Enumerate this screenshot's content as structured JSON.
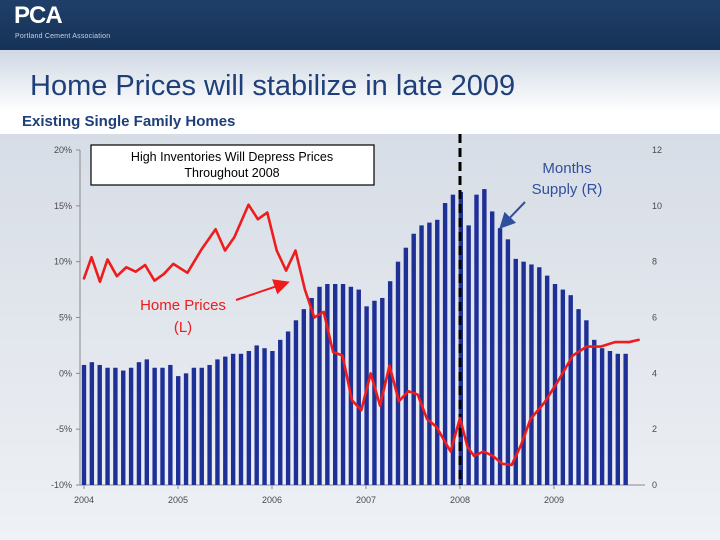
{
  "logo": {
    "text": "PCA",
    "subtitle": "Portland Cement Association"
  },
  "page": {
    "title": "Home Prices will stabilize in late 2009",
    "subtitle": "Existing Single Family Homes"
  },
  "colors": {
    "bar": "#1e2f96",
    "line": "#ee1c1c",
    "label_blue": "#30509e",
    "axis_text": "#4a4a4a",
    "chart_bg_top": "#d7dde6",
    "chart_bg_bottom": "#eef1f5"
  },
  "chart_data": {
    "type": "bar",
    "title": "High Inventories Will Depress Prices Throughout 2008",
    "title_lines": [
      "High Inventories Will Depress Prices",
      "Throughout 2008"
    ],
    "x_ticks": [
      "2004",
      "2005",
      "2006",
      "2007",
      "2008",
      "2009"
    ],
    "y_left": {
      "range": [
        -10,
        20
      ],
      "ticks": [
        "-10%",
        "-5%",
        "0%",
        "5%",
        "10%",
        "15%",
        "20%"
      ]
    },
    "y_right": {
      "range": [
        0,
        12
      ],
      "ticks": [
        "0",
        "2",
        "4",
        "6",
        "8",
        "10",
        "12"
      ]
    },
    "forecast_divider": "2008",
    "series": [
      {
        "name": "Months Supply (R)",
        "type": "bar",
        "axis": "right",
        "label_lines": [
          "Months",
          "Supply (R)"
        ],
        "values": [
          4.3,
          4.4,
          4.3,
          4.2,
          4.2,
          4.1,
          4.2,
          4.4,
          4.5,
          4.2,
          4.2,
          4.3,
          3.9,
          4.0,
          4.2,
          4.2,
          4.3,
          4.5,
          4.6,
          4.7,
          4.7,
          4.8,
          5.0,
          4.9,
          4.8,
          5.2,
          5.5,
          5.9,
          6.3,
          6.7,
          7.1,
          7.2,
          7.2,
          7.2,
          7.1,
          7.0,
          6.4,
          6.6,
          6.7,
          7.3,
          8.0,
          8.5,
          9.0,
          9.3,
          9.4,
          9.5,
          10.1,
          10.4,
          10.5,
          9.3,
          10.4,
          10.6,
          9.8,
          9.2,
          8.8,
          8.1,
          8.0,
          7.9,
          7.8,
          7.5,
          7.2,
          7.0,
          6.8,
          6.3,
          5.9,
          5.2,
          4.9,
          4.8,
          4.7,
          4.7
        ]
      },
      {
        "name": "Home Prices (L)",
        "type": "line",
        "axis": "left",
        "label_lines": [
          "Home Prices",
          "(L)"
        ],
        "x": [
          2004.0,
          2004.08,
          2004.17,
          2004.25,
          2004.35,
          2004.45,
          2004.55,
          2004.65,
          2004.75,
          2004.85,
          2004.95,
          2005.1,
          2005.25,
          2005.4,
          2005.5,
          2005.6,
          2005.75,
          2005.85,
          2005.95,
          2006.05,
          2006.15,
          2006.25,
          2006.35,
          2006.45,
          2006.55,
          2006.65,
          2006.75,
          2006.85,
          2006.95,
          2007.05,
          2007.15,
          2007.25,
          2007.35,
          2007.45,
          2007.55,
          2007.65,
          2007.75,
          2007.9,
          2008.0,
          2008.08,
          2008.15,
          2008.25,
          2008.35,
          2008.45,
          2008.55,
          2008.65,
          2008.75,
          2008.9,
          2009.05,
          2009.2,
          2009.35,
          2009.5,
          2009.65,
          2009.8,
          2009.9
        ],
        "values": [
          8.5,
          10.4,
          8.2,
          10.2,
          8.7,
          9.5,
          9.1,
          9.7,
          8.3,
          8.9,
          9.8,
          9.0,
          11.1,
          12.9,
          11.0,
          12.2,
          15.1,
          13.8,
          14.4,
          11.0,
          9.2,
          11.0,
          7.5,
          5.0,
          5.5,
          1.9,
          1.6,
          -2.4,
          -3.3,
          0.0,
          -2.9,
          0.7,
          -2.5,
          -1.6,
          -1.9,
          -4.1,
          -4.8,
          -7.0,
          -4.0,
          -6.6,
          -7.4,
          -7.0,
          -7.4,
          -8.1,
          -8.2,
          -6.4,
          -4.1,
          -2.6,
          -0.6,
          1.6,
          2.4,
          2.4,
          2.8,
          2.8,
          3.0
        ]
      }
    ]
  }
}
